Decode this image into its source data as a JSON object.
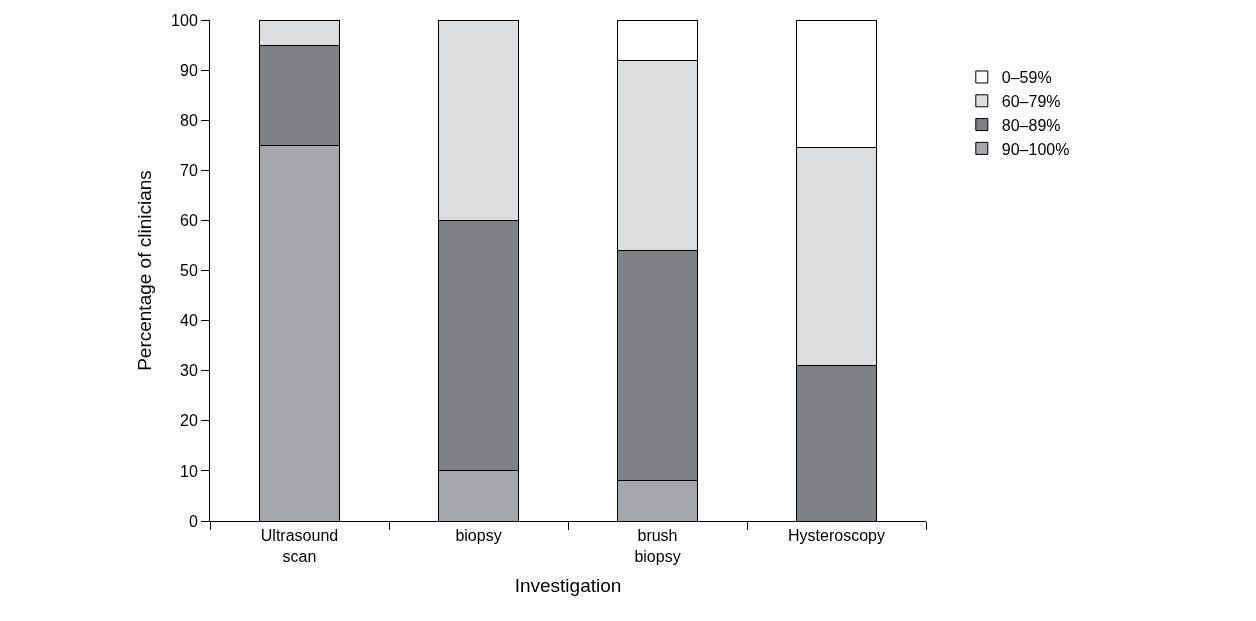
{
  "chart_data": {
    "type": "bar",
    "stacked": true,
    "xlabel": "Investigation",
    "ylabel": "Percentage of clinicians",
    "categories": [
      "Ultrasound scan",
      "biopsy",
      "brush biopsy",
      "Hysteroscopy"
    ],
    "series": [
      {
        "name": "90–100%",
        "color": "#a6a7aa",
        "values": [
          75,
          10,
          8,
          0
        ]
      },
      {
        "name": "80–89%",
        "color": "#808184",
        "values": [
          20,
          50,
          46,
          31
        ]
      },
      {
        "name": "60–79%",
        "color": "#dcdddf",
        "values": [
          5,
          40,
          38,
          43.5
        ]
      },
      {
        "name": "0–59%",
        "color": "#ffffff",
        "values": [
          0,
          0,
          8,
          25.5
        ]
      }
    ],
    "ylim": [
      0,
      100
    ],
    "yticks": [
      0,
      10,
      20,
      30,
      40,
      50,
      60,
      70,
      80,
      90,
      100
    ],
    "legend": "top right"
  }
}
